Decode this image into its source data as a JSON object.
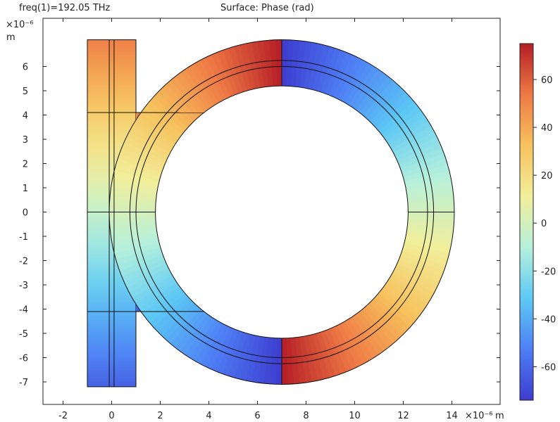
{
  "header": {
    "freq_label": "freq(1)=192.05 THz",
    "title": "Surface: Phase (rad)"
  },
  "chart_data": {
    "type": "heatmap",
    "title": "Surface: Phase (rad)",
    "subtitle": "freq(1)=192.05 THz",
    "xlabel": "m",
    "ylabel": "m",
    "x_multiplier": "×10⁻⁶",
    "y_multiplier": "×10⁻⁶",
    "xlim": [
      -2.9,
      15.2
    ],
    "ylim": [
      -7.9,
      7.5
    ],
    "x_ticks": [
      -2,
      0,
      2,
      4,
      6,
      8,
      10,
      12,
      14
    ],
    "y_ticks": [
      -7,
      -6,
      -5,
      -4,
      -3,
      -2,
      -1,
      0,
      1,
      2,
      3,
      4,
      5,
      6
    ],
    "colorbar": {
      "label": "Phase (rad)",
      "range": [
        -74,
        75
      ],
      "ticks": [
        -60,
        -40,
        -20,
        0,
        20,
        40,
        60
      ],
      "colormap": "rainbow",
      "colors": [
        "#3d3ccf",
        "#4e7ff5",
        "#5ec9f5",
        "#b6f0dc",
        "#f2ef9a",
        "#f7c25e",
        "#ee7a45",
        "#b51d26"
      ]
    },
    "geometry": {
      "ring_center": [
        7,
        0
      ],
      "ring_outer_radius": 7.1,
      "ring_inner_radius": 5.2,
      "ring_guide_radii": [
        6.0,
        6.25
      ],
      "waveguide_x": [
        -1.0,
        1.0
      ],
      "waveguide_y": [
        -7.2,
        7.1
      ],
      "waveguide_core_x": [
        -0.1,
        0.1
      ],
      "waveguide_splits_y": [
        4.1,
        0,
        -4.1
      ]
    },
    "phase_profile": {
      "ring_top_left_end": 75,
      "ring_top_right_start": -74,
      "ring_bottom_left_end": -74,
      "ring_bottom_right_start": 75,
      "waveguide_top": 52,
      "waveguide_bottom": -62
    }
  }
}
